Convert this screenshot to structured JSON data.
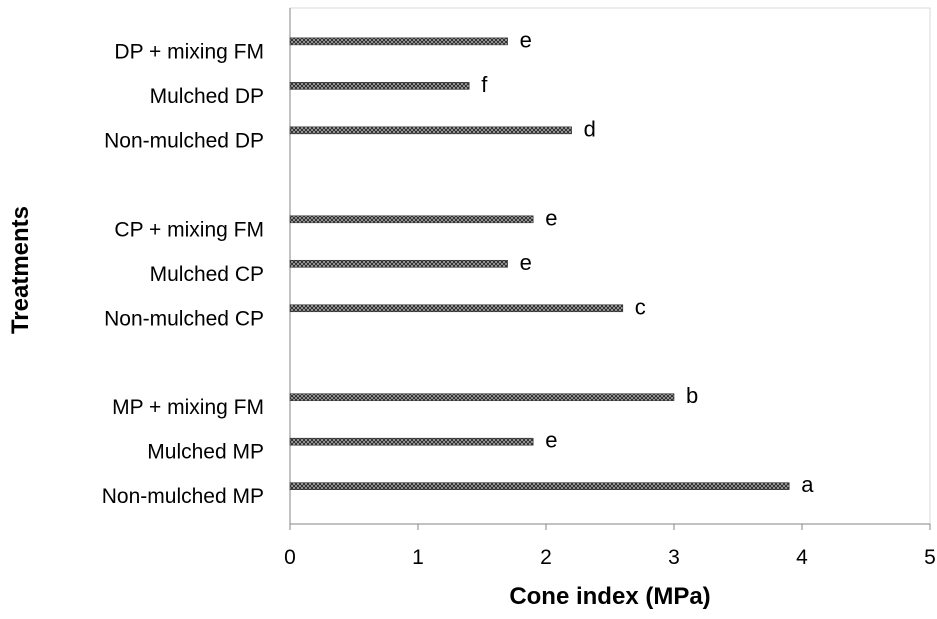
{
  "chart_data": {
    "type": "bar",
    "orientation": "horizontal",
    "title": "",
    "xlabel": "Cone index (MPa)",
    "ylabel": "Treatments",
    "xlim": [
      0,
      5
    ],
    "x_ticks": [
      "0",
      "1",
      "2",
      "3",
      "4",
      "5"
    ],
    "grid": false,
    "legend": "none",
    "bar_color": "#555555",
    "bar_pattern": "crosshatch",
    "groups": [
      {
        "bars": [
          {
            "category": "Non-mulched MP",
            "value": 3.9,
            "label": "a"
          },
          {
            "category": "Mulched MP",
            "value": 1.9,
            "label": "e"
          },
          {
            "category": "MP + mixing FM",
            "value": 3.0,
            "label": "b"
          }
        ]
      },
      {
        "bars": [
          {
            "category": "Non-mulched CP",
            "value": 2.6,
            "label": "c"
          },
          {
            "category": "Mulched CP",
            "value": 1.7,
            "label": "e"
          },
          {
            "category": "CP + mixing FM",
            "value": 1.9,
            "label": "e"
          }
        ]
      },
      {
        "bars": [
          {
            "category": "Non-mulched DP",
            "value": 2.2,
            "label": "d"
          },
          {
            "category": "Mulched DP",
            "value": 1.4,
            "label": "f"
          },
          {
            "category": "DP + mixing FM",
            "value": 1.7,
            "label": "e"
          }
        ]
      }
    ]
  }
}
